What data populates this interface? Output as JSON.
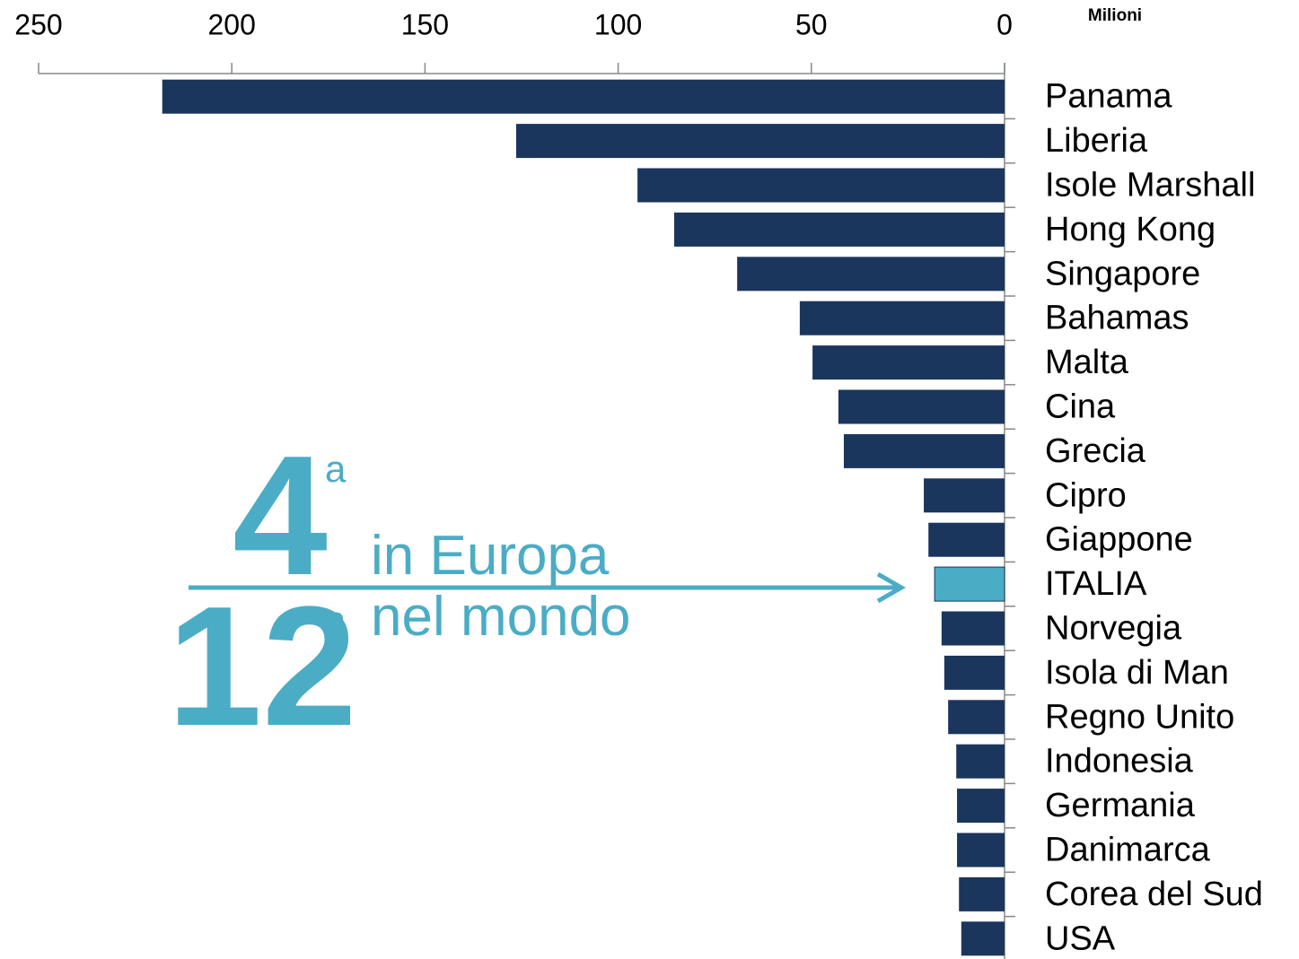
{
  "chart_data": {
    "type": "bar",
    "orientation": "horizontal",
    "x_reversed": true,
    "unit_label": "Milioni",
    "categories": [
      "Panama",
      "Liberia",
      "Isole Marshall",
      "Hong Kong",
      "Singapore",
      "Bahamas",
      "Malta",
      "Cina",
      "Grecia",
      "Cipro",
      "Giappone",
      "ITALIA",
      "Norvegia",
      "Isola di Man",
      "Regno Unito",
      "Indonesia",
      "Germania",
      "Danimarca",
      "Corea del Sud",
      "USA"
    ],
    "values": [
      218,
      126.4,
      95,
      85.5,
      69.2,
      53,
      49.7,
      43,
      41.6,
      20.9,
      19.7,
      18.1,
      16.3,
      15.6,
      14.6,
      12.5,
      12.3,
      12.3,
      11.8,
      11.2
    ],
    "color": "#1b365d",
    "highlight": "ITALIA",
    "highlight_color": "#4bacc6",
    "xlim": [
      0,
      250
    ],
    "xticks": [
      250,
      200,
      150,
      100,
      50,
      0
    ],
    "annotation": {
      "rank_europe": "4",
      "suffix": "a",
      "europe_text": "in Europa",
      "rank_world": "12",
      "world_text": "nel mondo",
      "color": "#4bacc6"
    }
  }
}
